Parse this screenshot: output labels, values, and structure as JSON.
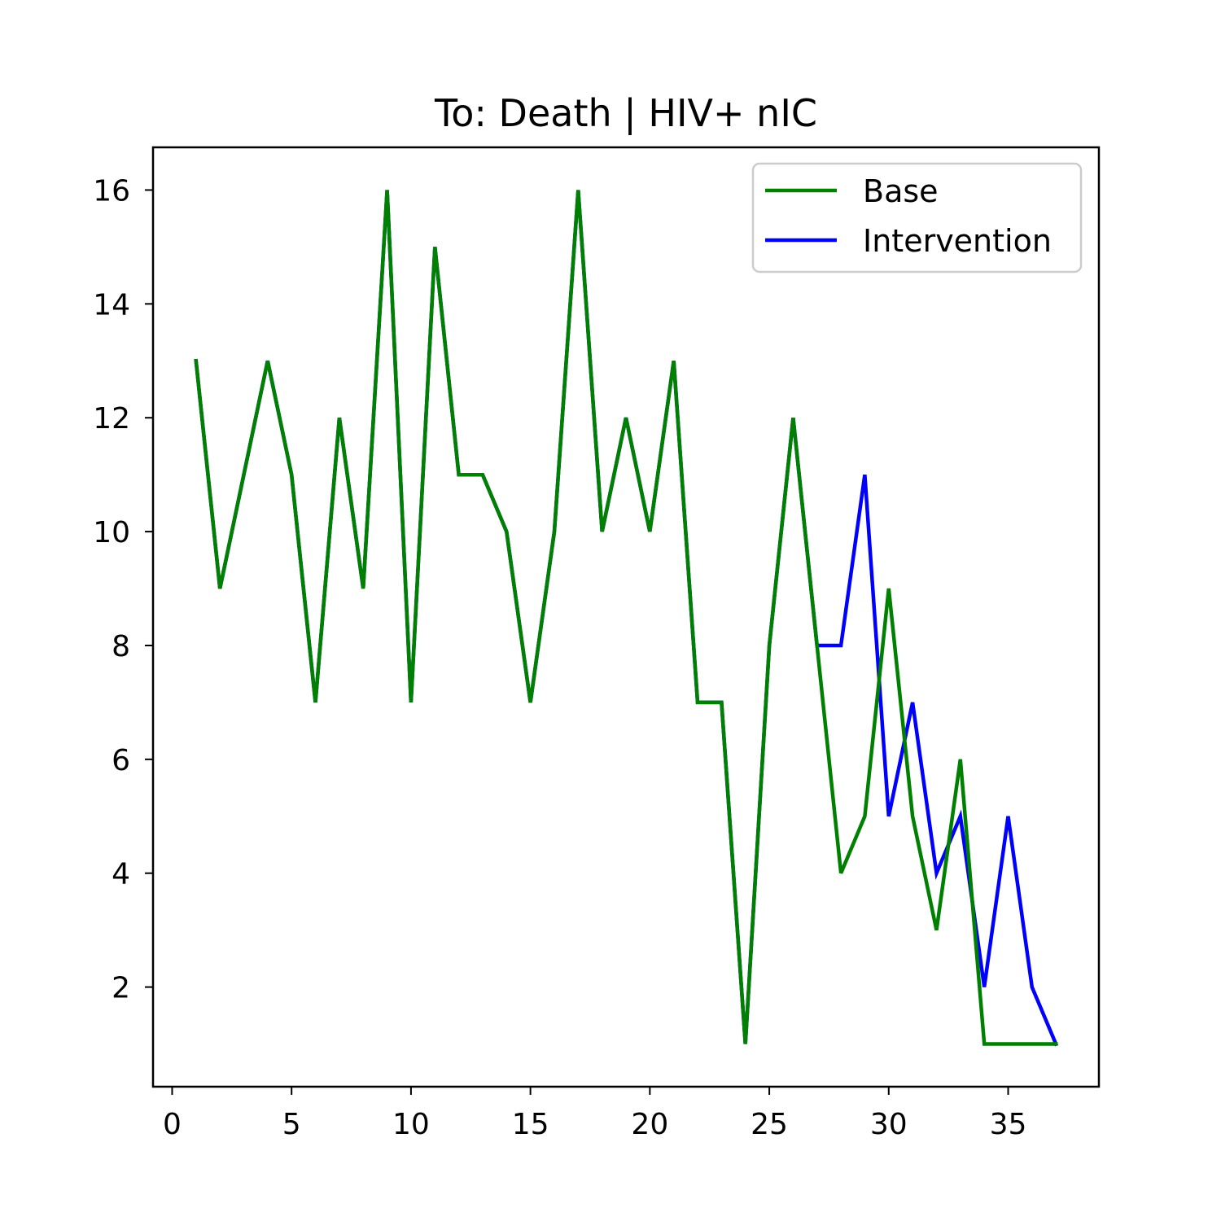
{
  "chart_data": {
    "type": "line",
    "title": "To: Death | HIV+ nIC",
    "xlabel": "",
    "ylabel": "",
    "xlim": [
      -0.8,
      38.8
    ],
    "ylim": [
      0.25,
      16.75
    ],
    "xticks": [
      0,
      5,
      10,
      15,
      20,
      25,
      30,
      35
    ],
    "yticks": [
      2,
      4,
      6,
      8,
      10,
      12,
      14,
      16
    ],
    "grid": false,
    "legend_position": "top-right",
    "series": [
      {
        "name": "Intervention",
        "color": "#0000ff",
        "x": [
          1,
          2,
          3,
          4,
          5,
          6,
          7,
          8,
          9,
          10,
          11,
          12,
          13,
          14,
          15,
          16,
          17,
          18,
          19,
          20,
          21,
          22,
          23,
          24,
          25,
          26,
          27,
          28,
          29,
          30,
          31,
          32,
          33,
          34,
          35,
          36,
          37
        ],
        "y": [
          13,
          9,
          11,
          13,
          11,
          7,
          12,
          9,
          16,
          7,
          15,
          11,
          11,
          10,
          7,
          10,
          16,
          10,
          12,
          10,
          13,
          7,
          7,
          1,
          8,
          12,
          8,
          8,
          11,
          5,
          7,
          4,
          5,
          2,
          5,
          2,
          1
        ]
      },
      {
        "name": "Base",
        "color": "#008000",
        "x": [
          1,
          2,
          3,
          4,
          5,
          6,
          7,
          8,
          9,
          10,
          11,
          12,
          13,
          14,
          15,
          16,
          17,
          18,
          19,
          20,
          21,
          22,
          23,
          24,
          25,
          26,
          27,
          28,
          29,
          30,
          31,
          32,
          33,
          34,
          35,
          36,
          37
        ],
        "y": [
          13,
          9,
          11,
          13,
          11,
          7,
          12,
          9,
          16,
          7,
          15,
          11,
          11,
          10,
          7,
          10,
          16,
          10,
          12,
          10,
          13,
          7,
          7,
          1,
          8,
          12,
          8,
          4,
          5,
          9,
          5,
          3,
          6,
          1,
          1,
          1,
          1
        ]
      }
    ],
    "legend": [
      "Base",
      "Intervention"
    ]
  }
}
